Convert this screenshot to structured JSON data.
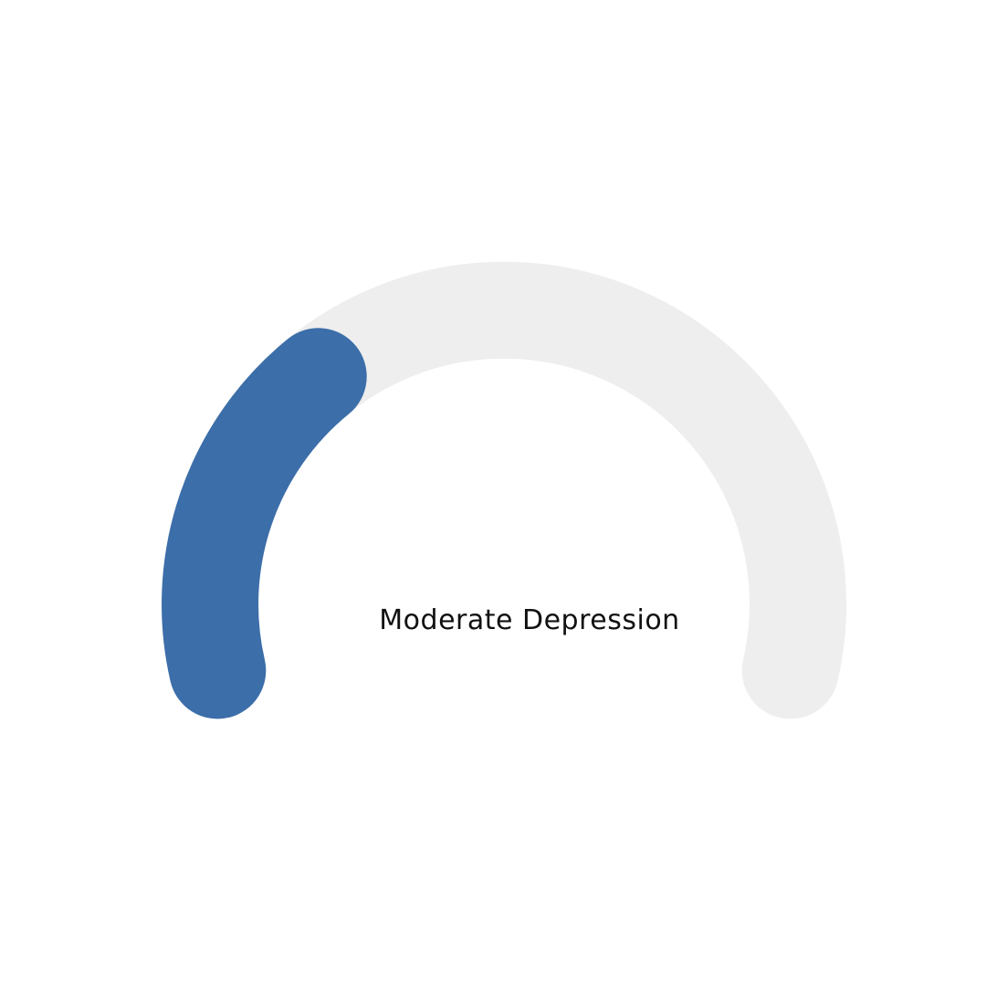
{
  "gauge": {
    "label": "Moderate Depression",
    "level_fraction": 0.31,
    "colors": {
      "fill": "#3c6ea9",
      "track": "#eeeeee",
      "text": "#111111"
    }
  }
}
